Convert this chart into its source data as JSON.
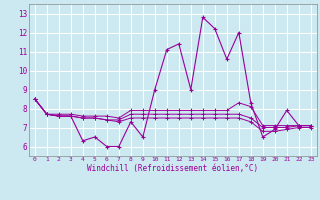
{
  "xlabel": "Windchill (Refroidissement éolien,°C)",
  "background_color": "#cce8f0",
  "grid_color": "#ffffff",
  "line_color": "#990099",
  "x": [
    0,
    1,
    2,
    3,
    4,
    5,
    6,
    7,
    8,
    9,
    10,
    11,
    12,
    13,
    14,
    15,
    16,
    17,
    18,
    19,
    20,
    21,
    22,
    23
  ],
  "y_main": [
    8.5,
    7.7,
    7.6,
    7.6,
    6.3,
    6.5,
    6.0,
    6.0,
    7.3,
    6.5,
    9.0,
    11.1,
    11.4,
    9.0,
    12.8,
    12.2,
    10.6,
    12.0,
    8.3,
    6.5,
    6.9,
    7.9,
    7.1,
    7.1
  ],
  "y_line2": [
    8.5,
    7.7,
    7.7,
    7.7,
    7.6,
    7.6,
    7.6,
    7.5,
    7.9,
    7.9,
    7.9,
    7.9,
    7.9,
    7.9,
    7.9,
    7.9,
    7.9,
    8.3,
    8.1,
    7.1,
    7.1,
    7.1,
    7.1,
    7.1
  ],
  "y_line3": [
    8.5,
    7.7,
    7.6,
    7.6,
    7.5,
    7.5,
    7.4,
    7.4,
    7.7,
    7.7,
    7.7,
    7.7,
    7.7,
    7.7,
    7.7,
    7.7,
    7.7,
    7.7,
    7.5,
    7.0,
    7.0,
    7.0,
    7.1,
    7.1
  ],
  "y_line4": [
    8.5,
    7.7,
    7.6,
    7.6,
    7.5,
    7.5,
    7.4,
    7.3,
    7.5,
    7.5,
    7.5,
    7.5,
    7.5,
    7.5,
    7.5,
    7.5,
    7.5,
    7.5,
    7.3,
    6.8,
    6.8,
    6.9,
    7.0,
    7.0
  ],
  "ylim": [
    5.5,
    13.5
  ],
  "yticks": [
    6,
    7,
    8,
    9,
    10,
    11,
    12,
    13
  ],
  "xticks": [
    0,
    1,
    2,
    3,
    4,
    5,
    6,
    7,
    8,
    9,
    10,
    11,
    12,
    13,
    14,
    15,
    16,
    17,
    18,
    19,
    20,
    21,
    22,
    23
  ]
}
